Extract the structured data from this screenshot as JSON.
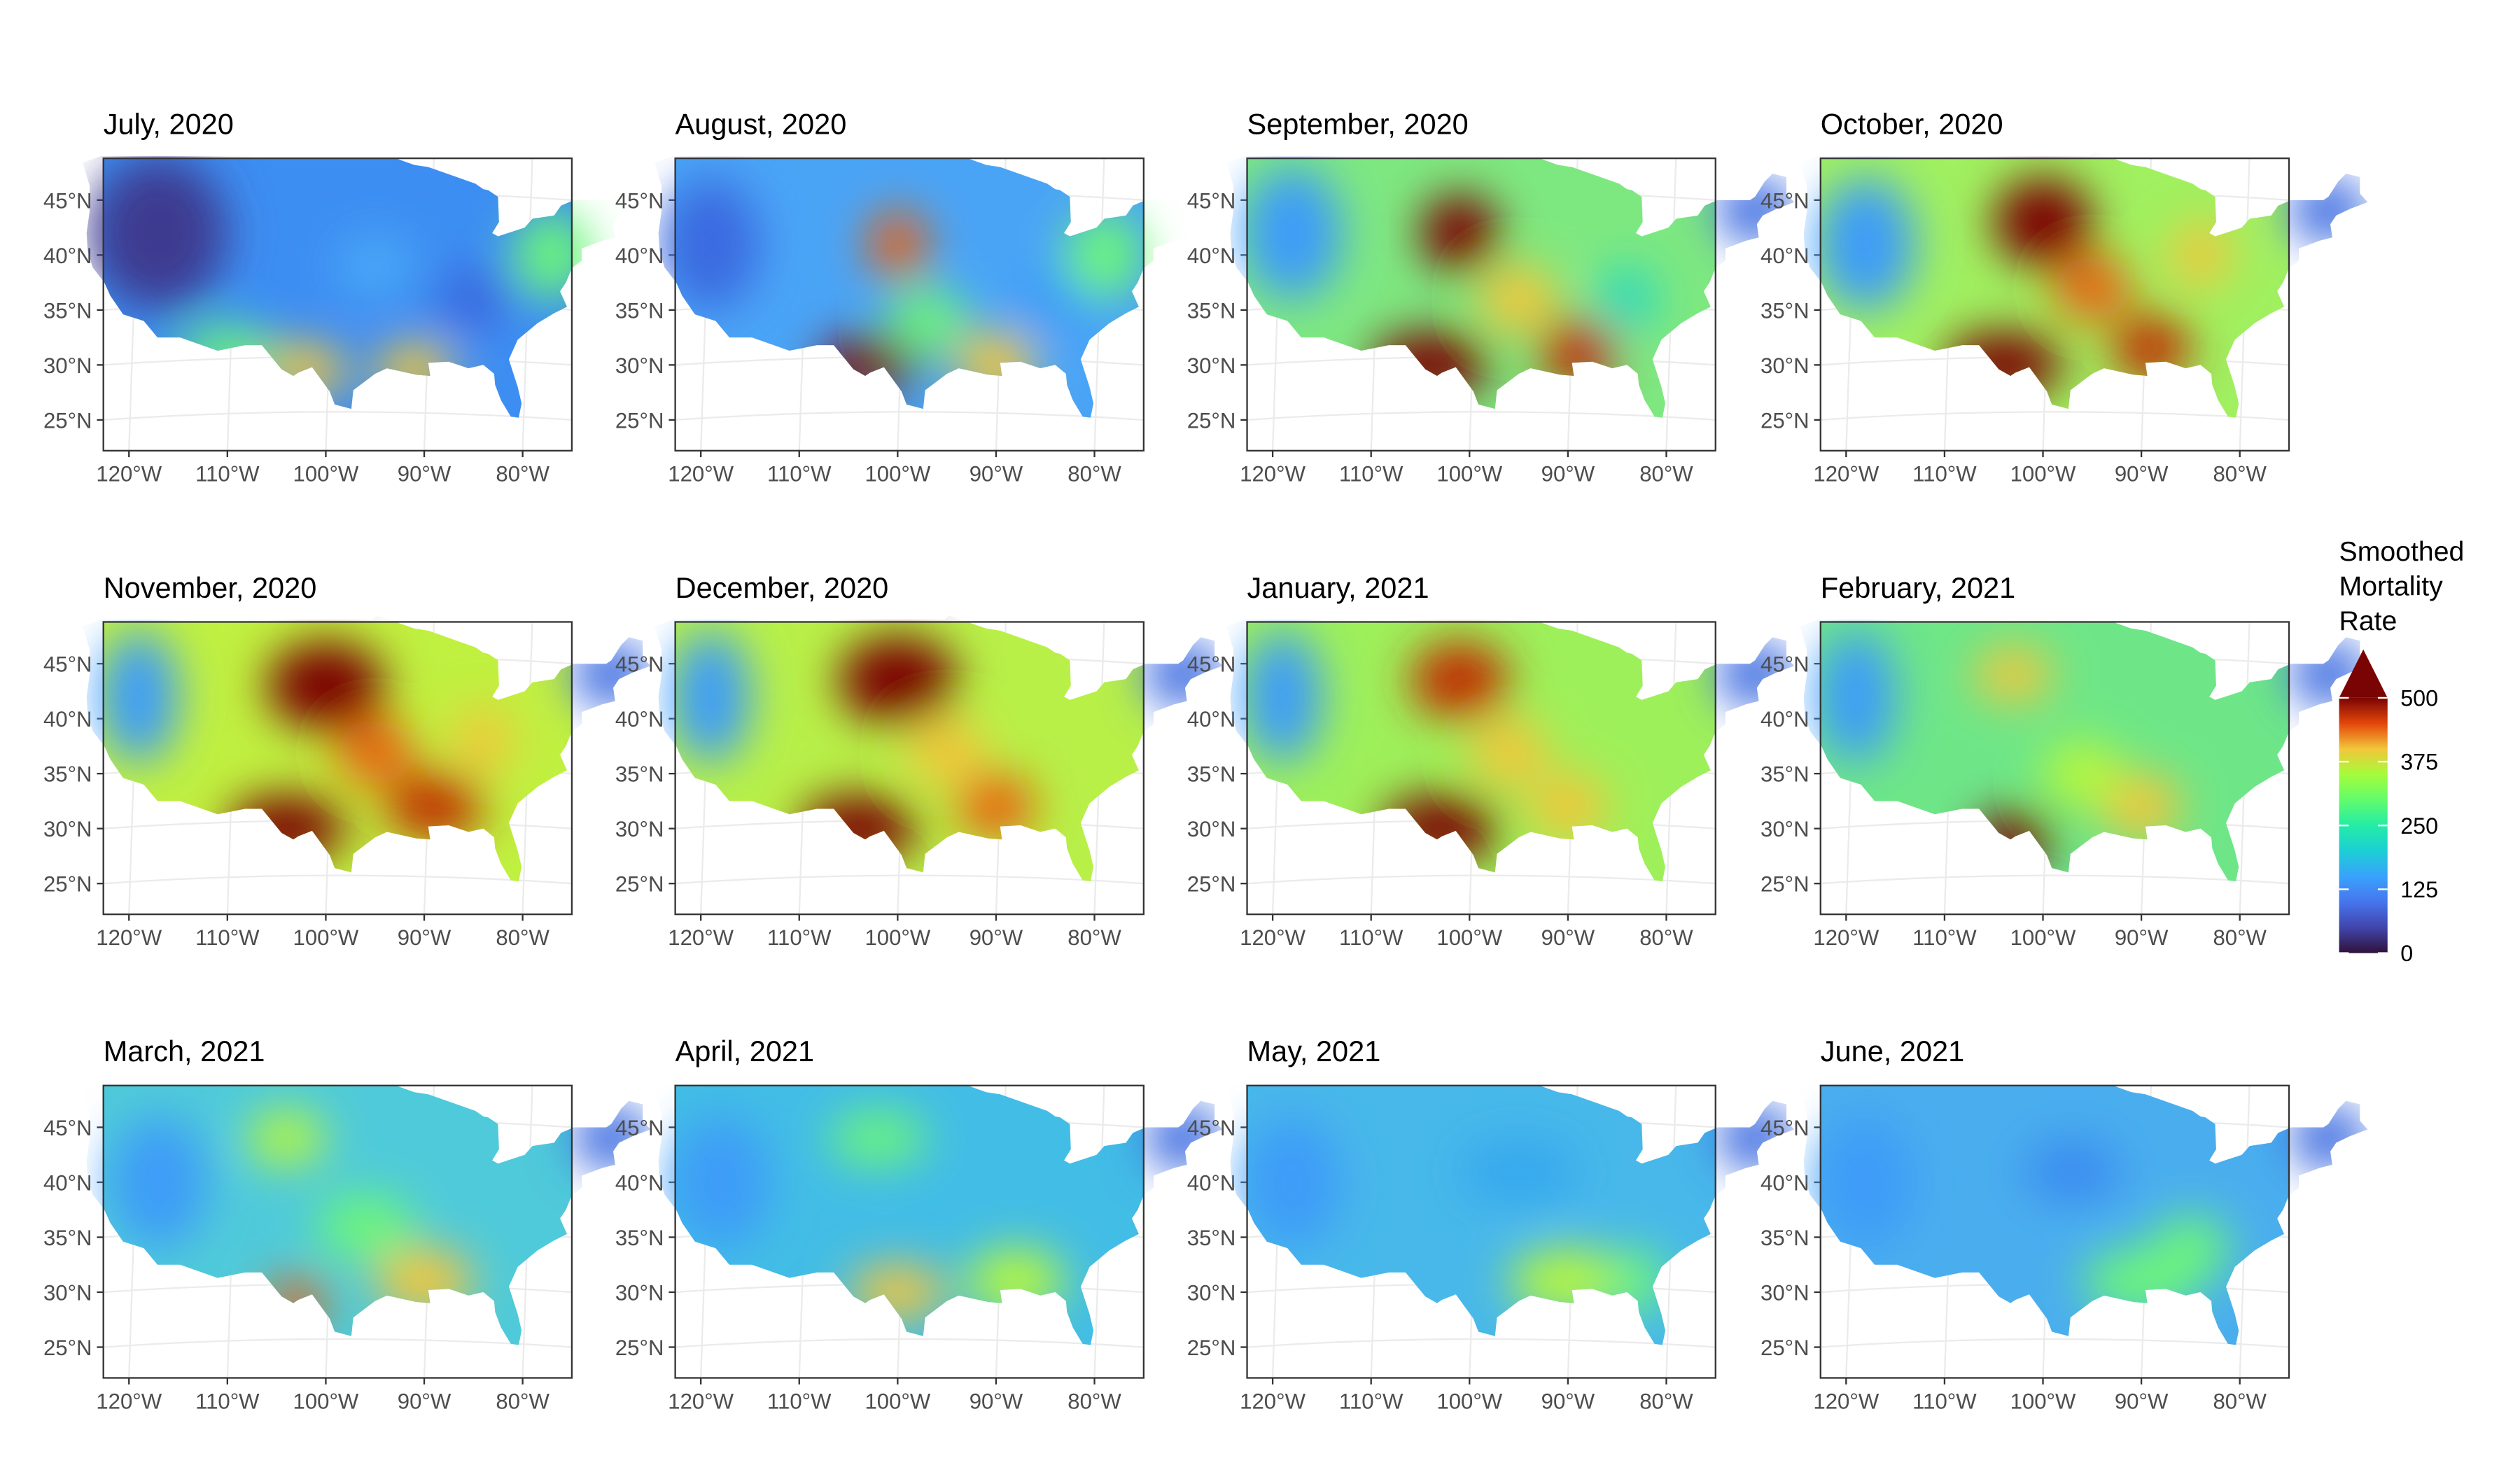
{
  "chart_data": [
    {
      "type": "map",
      "title": "July, 2020",
      "xlim": [
        -122.6,
        -75
      ],
      "ylim": [
        22.2,
        48.8
      ],
      "xticks": [
        {
          "value": -120,
          "label": "120°W"
        },
        {
          "value": -110,
          "label": "110°W"
        },
        {
          "value": -100,
          "label": "100°W"
        },
        {
          "value": -90,
          "label": "90°W"
        },
        {
          "value": -80,
          "label": "80°W"
        }
      ],
      "yticks": [
        {
          "value": 25,
          "label": "25°N"
        },
        {
          "value": 30,
          "label": "30°N"
        },
        {
          "value": 35,
          "label": "35°N"
        },
        {
          "value": 40,
          "label": "40°N"
        },
        {
          "value": 45,
          "label": "45°N"
        }
      ]
    },
    {
      "type": "map",
      "title": "August, 2020",
      "xlim": [
        -122.6,
        -75
      ],
      "ylim": [
        22.2,
        48.8
      ],
      "xticks": [
        {
          "value": -120,
          "label": "120°W"
        },
        {
          "value": -110,
          "label": "110°W"
        },
        {
          "value": -100,
          "label": "100°W"
        },
        {
          "value": -90,
          "label": "90°W"
        },
        {
          "value": -80,
          "label": "80°W"
        }
      ],
      "yticks": [
        {
          "value": 25,
          "label": "25°N"
        },
        {
          "value": 30,
          "label": "30°N"
        },
        {
          "value": 35,
          "label": "35°N"
        },
        {
          "value": 40,
          "label": "40°N"
        },
        {
          "value": 45,
          "label": "45°N"
        }
      ]
    },
    {
      "type": "map",
      "title": "September, 2020",
      "xlim": [
        -122.6,
        -75
      ],
      "ylim": [
        22.2,
        48.8
      ],
      "xticks": [
        {
          "value": -120,
          "label": "120°W"
        },
        {
          "value": -110,
          "label": "110°W"
        },
        {
          "value": -100,
          "label": "100°W"
        },
        {
          "value": -90,
          "label": "90°W"
        },
        {
          "value": -80,
          "label": "80°W"
        }
      ],
      "yticks": [
        {
          "value": 25,
          "label": "25°N"
        },
        {
          "value": 30,
          "label": "30°N"
        },
        {
          "value": 35,
          "label": "35°N"
        },
        {
          "value": 40,
          "label": "40°N"
        },
        {
          "value": 45,
          "label": "45°N"
        }
      ]
    },
    {
      "type": "map",
      "title": "October, 2020",
      "xlim": [
        -122.6,
        -75
      ],
      "ylim": [
        22.2,
        48.8
      ],
      "xticks": [
        {
          "value": -120,
          "label": "120°W"
        },
        {
          "value": -110,
          "label": "110°W"
        },
        {
          "value": -100,
          "label": "100°W"
        },
        {
          "value": -90,
          "label": "90°W"
        },
        {
          "value": -80,
          "label": "80°W"
        }
      ],
      "yticks": [
        {
          "value": 25,
          "label": "25°N"
        },
        {
          "value": 30,
          "label": "30°N"
        },
        {
          "value": 35,
          "label": "35°N"
        },
        {
          "value": 40,
          "label": "40°N"
        },
        {
          "value": 45,
          "label": "45°N"
        }
      ]
    },
    {
      "type": "map",
      "title": "November, 2020",
      "xlim": [
        -122.6,
        -75
      ],
      "ylim": [
        22.2,
        48.8
      ],
      "xticks": [
        {
          "value": -120,
          "label": "120°W"
        },
        {
          "value": -110,
          "label": "110°W"
        },
        {
          "value": -100,
          "label": "100°W"
        },
        {
          "value": -90,
          "label": "90°W"
        },
        {
          "value": -80,
          "label": "80°W"
        }
      ],
      "yticks": [
        {
          "value": 25,
          "label": "25°N"
        },
        {
          "value": 30,
          "label": "30°N"
        },
        {
          "value": 35,
          "label": "35°N"
        },
        {
          "value": 40,
          "label": "40°N"
        },
        {
          "value": 45,
          "label": "45°N"
        }
      ]
    },
    {
      "type": "map",
      "title": "December, 2020",
      "xlim": [
        -122.6,
        -75
      ],
      "ylim": [
        22.2,
        48.8
      ],
      "xticks": [
        {
          "value": -120,
          "label": "120°W"
        },
        {
          "value": -110,
          "label": "110°W"
        },
        {
          "value": -100,
          "label": "100°W"
        },
        {
          "value": -90,
          "label": "90°W"
        },
        {
          "value": -80,
          "label": "80°W"
        }
      ],
      "yticks": [
        {
          "value": 25,
          "label": "25°N"
        },
        {
          "value": 30,
          "label": "30°N"
        },
        {
          "value": 35,
          "label": "35°N"
        },
        {
          "value": 40,
          "label": "40°N"
        },
        {
          "value": 45,
          "label": "45°N"
        }
      ]
    },
    {
      "type": "map",
      "title": "January, 2021",
      "xlim": [
        -122.6,
        -75
      ],
      "ylim": [
        22.2,
        48.8
      ],
      "xticks": [
        {
          "value": -120,
          "label": "120°W"
        },
        {
          "value": -110,
          "label": "110°W"
        },
        {
          "value": -100,
          "label": "100°W"
        },
        {
          "value": -90,
          "label": "90°W"
        },
        {
          "value": -80,
          "label": "80°W"
        }
      ],
      "yticks": [
        {
          "value": 25,
          "label": "25°N"
        },
        {
          "value": 30,
          "label": "30°N"
        },
        {
          "value": 35,
          "label": "35°N"
        },
        {
          "value": 40,
          "label": "40°N"
        },
        {
          "value": 45,
          "label": "45°N"
        }
      ]
    },
    {
      "type": "map",
      "title": "February, 2021",
      "xlim": [
        -122.6,
        -75
      ],
      "ylim": [
        22.2,
        48.8
      ],
      "xticks": [
        {
          "value": -120,
          "label": "120°W"
        },
        {
          "value": -110,
          "label": "110°W"
        },
        {
          "value": -100,
          "label": "100°W"
        },
        {
          "value": -90,
          "label": "90°W"
        },
        {
          "value": -80,
          "label": "80°W"
        }
      ],
      "yticks": [
        {
          "value": 25,
          "label": "25°N"
        },
        {
          "value": 30,
          "label": "30°N"
        },
        {
          "value": 35,
          "label": "35°N"
        },
        {
          "value": 40,
          "label": "40°N"
        },
        {
          "value": 45,
          "label": "45°N"
        }
      ]
    },
    {
      "type": "map",
      "title": "March, 2021",
      "xlim": [
        -122.6,
        -75
      ],
      "ylim": [
        22.2,
        48.8
      ],
      "xticks": [
        {
          "value": -120,
          "label": "120°W"
        },
        {
          "value": -110,
          "label": "110°W"
        },
        {
          "value": -100,
          "label": "100°W"
        },
        {
          "value": -90,
          "label": "90°W"
        },
        {
          "value": -80,
          "label": "80°W"
        }
      ],
      "yticks": [
        {
          "value": 25,
          "label": "25°N"
        },
        {
          "value": 30,
          "label": "30°N"
        },
        {
          "value": 35,
          "label": "35°N"
        },
        {
          "value": 40,
          "label": "40°N"
        },
        {
          "value": 45,
          "label": "45°N"
        }
      ]
    },
    {
      "type": "map",
      "title": "April, 2021",
      "xlim": [
        -122.6,
        -75
      ],
      "ylim": [
        22.2,
        48.8
      ],
      "xticks": [
        {
          "value": -120,
          "label": "120°W"
        },
        {
          "value": -110,
          "label": "110°W"
        },
        {
          "value": -100,
          "label": "100°W"
        },
        {
          "value": -90,
          "label": "90°W"
        },
        {
          "value": -80,
          "label": "80°W"
        }
      ],
      "yticks": [
        {
          "value": 25,
          "label": "25°N"
        },
        {
          "value": 30,
          "label": "30°N"
        },
        {
          "value": 35,
          "label": "35°N"
        },
        {
          "value": 40,
          "label": "40°N"
        },
        {
          "value": 45,
          "label": "45°N"
        }
      ]
    },
    {
      "type": "map",
      "title": "May, 2021",
      "xlim": [
        -122.6,
        -75
      ],
      "ylim": [
        22.2,
        48.8
      ],
      "xticks": [
        {
          "value": -120,
          "label": "120°W"
        },
        {
          "value": -110,
          "label": "110°W"
        },
        {
          "value": -100,
          "label": "100°W"
        },
        {
          "value": -90,
          "label": "90°W"
        },
        {
          "value": -80,
          "label": "80°W"
        }
      ],
      "yticks": [
        {
          "value": 25,
          "label": "25°N"
        },
        {
          "value": 30,
          "label": "30°N"
        },
        {
          "value": 35,
          "label": "35°N"
        },
        {
          "value": 40,
          "label": "40°N"
        },
        {
          "value": 45,
          "label": "45°N"
        }
      ]
    },
    {
      "type": "map",
      "title": "June, 2021",
      "xlim": [
        -122.6,
        -75
      ],
      "ylim": [
        22.2,
        48.8
      ],
      "xticks": [
        {
          "value": -120,
          "label": "120°W"
        },
        {
          "value": -110,
          "label": "110°W"
        },
        {
          "value": -100,
          "label": "100°W"
        },
        {
          "value": -90,
          "label": "90°W"
        },
        {
          "value": -80,
          "label": "80°W"
        }
      ],
      "yticks": [
        {
          "value": 25,
          "label": "25°N"
        },
        {
          "value": 30,
          "label": "30°N"
        },
        {
          "value": 35,
          "label": "35°N"
        },
        {
          "value": 40,
          "label": "40°N"
        },
        {
          "value": 45,
          "label": "45°N"
        }
      ]
    }
  ],
  "legend": {
    "title": [
      "Smoothed",
      "Mortality",
      "Rate"
    ],
    "lim": [
      0,
      500
    ],
    "ticks": [
      0,
      125,
      250,
      375,
      500
    ]
  }
}
